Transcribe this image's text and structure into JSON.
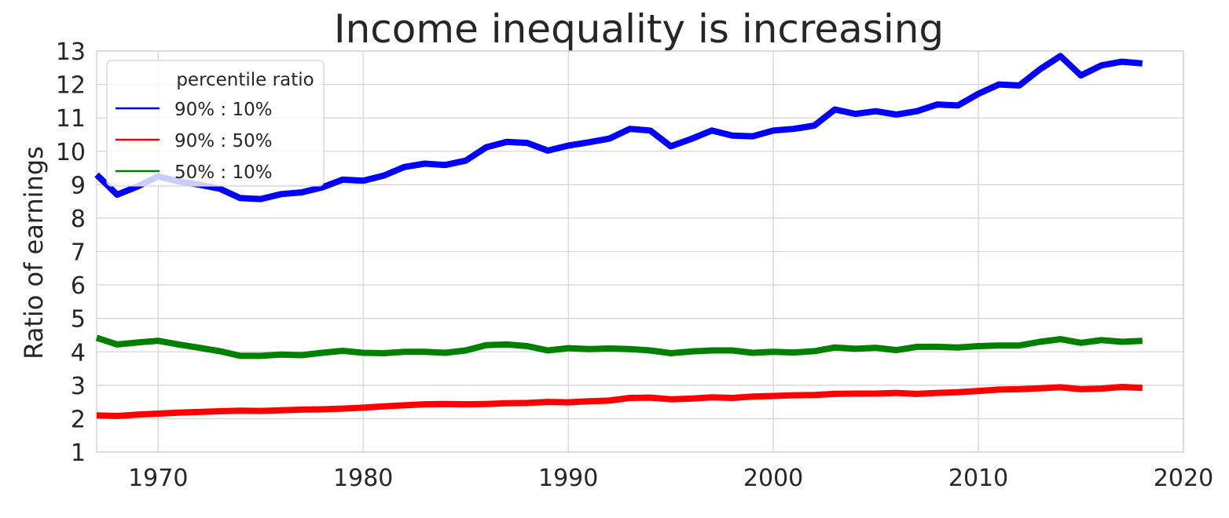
{
  "chart_data": {
    "type": "line",
    "title": "Income inequality is increasing",
    "xlabel": "",
    "ylabel": "Ratio of earnings",
    "xlim": [
      1967,
      2020
    ],
    "ylim": [
      1,
      13
    ],
    "xticks": [
      1970,
      1980,
      1990,
      2000,
      2010,
      2020
    ],
    "yticks": [
      1,
      2,
      3,
      4,
      5,
      6,
      7,
      8,
      9,
      10,
      11,
      12,
      13
    ],
    "grid": true,
    "legend": {
      "title": "percentile ratio",
      "placement": "upper-left"
    },
    "x": [
      1967,
      1968,
      1969,
      1970,
      1971,
      1972,
      1973,
      1974,
      1975,
      1976,
      1977,
      1978,
      1979,
      1980,
      1981,
      1982,
      1983,
      1984,
      1985,
      1986,
      1987,
      1988,
      1989,
      1990,
      1991,
      1992,
      1993,
      1994,
      1995,
      1996,
      1997,
      1998,
      1999,
      2000,
      2001,
      2002,
      2003,
      2004,
      2005,
      2006,
      2007,
      2008,
      2009,
      2010,
      2011,
      2012,
      2013,
      2014,
      2015,
      2016,
      2017,
      2018
    ],
    "series": [
      {
        "name": "90% : 10%",
        "color": "#0000ff",
        "values": [
          9.3,
          8.7,
          8.95,
          9.25,
          9.1,
          9.0,
          8.88,
          8.6,
          8.57,
          8.72,
          8.77,
          8.92,
          9.15,
          9.12,
          9.27,
          9.53,
          9.63,
          9.59,
          9.72,
          10.12,
          10.28,
          10.25,
          10.02,
          10.17,
          10.27,
          10.38,
          10.67,
          10.62,
          10.15,
          10.37,
          10.62,
          10.47,
          10.45,
          10.62,
          10.67,
          10.77,
          11.25,
          11.12,
          11.2,
          11.1,
          11.2,
          11.4,
          11.37,
          11.72,
          12.0,
          11.97,
          12.45,
          12.85,
          12.27,
          12.57,
          12.68,
          12.63
        ]
      },
      {
        "name": "90% : 50%",
        "color": "#ff0000",
        "values": [
          2.1,
          2.08,
          2.12,
          2.15,
          2.18,
          2.2,
          2.22,
          2.24,
          2.23,
          2.25,
          2.27,
          2.28,
          2.3,
          2.33,
          2.37,
          2.4,
          2.43,
          2.44,
          2.43,
          2.44,
          2.46,
          2.47,
          2.5,
          2.49,
          2.52,
          2.54,
          2.62,
          2.63,
          2.58,
          2.6,
          2.64,
          2.62,
          2.66,
          2.68,
          2.7,
          2.71,
          2.74,
          2.75,
          2.75,
          2.77,
          2.74,
          2.77,
          2.79,
          2.83,
          2.87,
          2.88,
          2.91,
          2.94,
          2.88,
          2.9,
          2.95,
          2.92
        ]
      },
      {
        "name": "50% : 10%",
        "color": "#008000",
        "values": [
          4.42,
          4.22,
          4.28,
          4.33,
          4.22,
          4.12,
          4.02,
          3.88,
          3.88,
          3.92,
          3.9,
          3.97,
          4.03,
          3.97,
          3.96,
          4.0,
          4.0,
          3.97,
          4.04,
          4.2,
          4.22,
          4.17,
          4.04,
          4.11,
          4.08,
          4.1,
          4.08,
          4.04,
          3.96,
          4.01,
          4.04,
          4.04,
          3.97,
          4.0,
          3.98,
          4.02,
          4.13,
          4.09,
          4.12,
          4.05,
          4.15,
          4.15,
          4.13,
          4.17,
          4.19,
          4.19,
          4.3,
          4.38,
          4.27,
          4.35,
          4.3,
          4.33
        ]
      }
    ]
  }
}
